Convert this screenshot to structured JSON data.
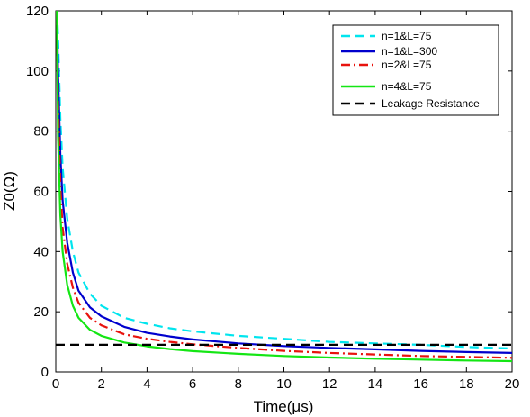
{
  "chart_data": {
    "type": "line",
    "xlabel": "Time(μs)",
    "ylabel": "Z0(Ω)",
    "xlim": [
      0,
      20
    ],
    "ylim": [
      0,
      120
    ],
    "xticks": [
      "0",
      "2",
      "4",
      "6",
      "8",
      "10",
      "12",
      "14",
      "16",
      "18",
      "20"
    ],
    "yticks": [
      "0",
      "20",
      "40",
      "60",
      "80",
      "100",
      "120"
    ],
    "legend_position": "top-right",
    "grid": false,
    "series": [
      {
        "name": "n=1&L=75",
        "color": "#00e5ee",
        "style": "dashed",
        "x": [
          0.05,
          0.1,
          0.2,
          0.3,
          0.5,
          0.75,
          1,
          1.5,
          2,
          3,
          4,
          5,
          6,
          8,
          10,
          12,
          14,
          16,
          18,
          20
        ],
        "y": [
          120,
          112,
          84,
          68,
          51,
          40,
          33,
          26,
          22,
          18,
          16,
          14.5,
          13.5,
          12,
          11,
          10,
          9.5,
          9,
          8.3,
          7.8
        ]
      },
      {
        "name": "n=1&L=300",
        "color": "#0000cd",
        "style": "solid",
        "x": [
          0.05,
          0.1,
          0.2,
          0.3,
          0.5,
          0.75,
          1,
          1.5,
          2,
          3,
          4,
          5,
          6,
          8,
          10,
          12,
          14,
          16,
          18,
          20
        ],
        "y": [
          120,
          100,
          72,
          57,
          43,
          33,
          27,
          21.5,
          18.5,
          15,
          13,
          11.8,
          10.8,
          9.5,
          8.6,
          8,
          7.5,
          7,
          6.6,
          6.3
        ]
      },
      {
        "name": "n=2&L=75",
        "color": "#e8130e",
        "style": "dashdot",
        "x": [
          0.05,
          0.1,
          0.2,
          0.3,
          0.5,
          0.75,
          1,
          1.5,
          2,
          3,
          4,
          5,
          6,
          8,
          10,
          12,
          14,
          16,
          18,
          20
        ],
        "y": [
          120,
          90,
          62,
          48,
          36,
          28,
          23,
          18,
          15.5,
          12.5,
          11,
          10,
          9.2,
          8,
          7,
          6.3,
          5.8,
          5.3,
          5,
          4.7
        ]
      },
      {
        "name": "n=4&L=75",
        "color": "#14e614",
        "style": "solid",
        "x": [
          0.05,
          0.1,
          0.2,
          0.3,
          0.5,
          0.75,
          1,
          1.5,
          2,
          3,
          4,
          5,
          6,
          8,
          10,
          12,
          14,
          16,
          18,
          20
        ],
        "y": [
          120,
          78,
          52,
          40,
          29,
          22,
          18,
          14,
          12,
          9.8,
          8.5,
          7.6,
          6.9,
          6,
          5.3,
          4.8,
          4.4,
          4.1,
          3.8,
          3.6
        ]
      },
      {
        "name": "Leakage Resistance",
        "color": "#000000",
        "style": "dashed",
        "x": [
          0,
          20
        ],
        "y": [
          9,
          9
        ]
      }
    ]
  }
}
